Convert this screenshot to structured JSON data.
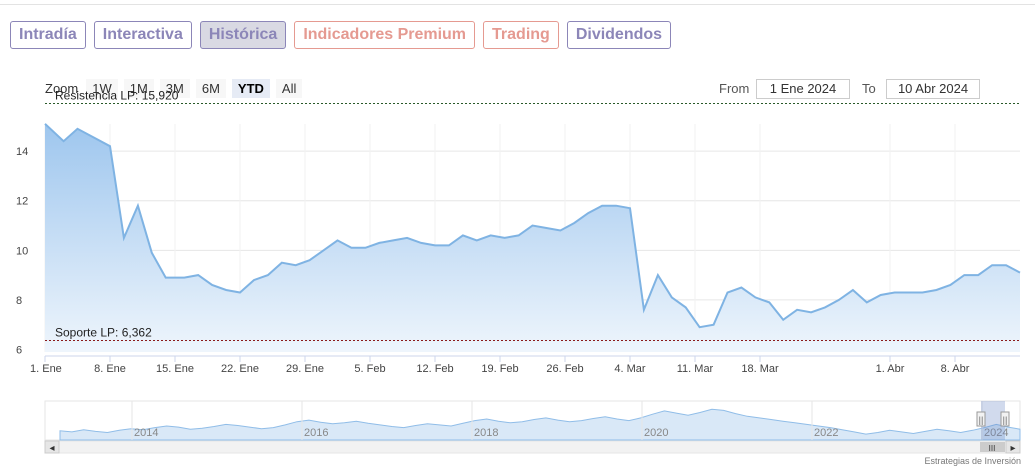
{
  "tabs": [
    {
      "label": "Intradía",
      "active": false,
      "premium": false
    },
    {
      "label": "Interactiva",
      "active": false,
      "premium": false
    },
    {
      "label": "Histórica",
      "active": true,
      "premium": false
    },
    {
      "label": "Indicadores Premium",
      "active": false,
      "premium": true
    },
    {
      "label": "Trading",
      "active": false,
      "premium": true
    },
    {
      "label": "Dividendos",
      "active": false,
      "premium": false
    }
  ],
  "zoom": {
    "label": "Zoom",
    "buttons": [
      "1W",
      "1M",
      "3M",
      "6M",
      "YTD",
      "All"
    ],
    "active": "YTD"
  },
  "range": {
    "from_label": "From",
    "from_value": "1 Ene 2024",
    "to_label": "To",
    "to_value": "10 Abr 2024"
  },
  "chart_data": {
    "type": "area",
    "title": "",
    "xlabel": "",
    "ylabel": "",
    "ylim": [
      5.9,
      15.9
    ],
    "y_ticks": [
      6,
      8,
      10,
      12,
      14
    ],
    "x_ticks": [
      {
        "day": 0,
        "label": "1. Ene"
      },
      {
        "day": 7,
        "label": "8. Ene"
      },
      {
        "day": 14,
        "label": "15. Ene"
      },
      {
        "day": 21,
        "label": "22. Ene"
      },
      {
        "day": 28,
        "label": "29. Ene"
      },
      {
        "day": 35,
        "label": "5. Feb"
      },
      {
        "day": 42,
        "label": "12. Feb"
      },
      {
        "day": 49,
        "label": "19. Feb"
      },
      {
        "day": 56,
        "label": "26. Feb"
      },
      {
        "day": 63,
        "label": "4. Mar"
      },
      {
        "day": 70,
        "label": "11. Mar"
      },
      {
        "day": 77,
        "label": "18. Mar"
      },
      {
        "day": 91,
        "label": "1. Abr"
      },
      {
        "day": 98,
        "label": "8. Abr"
      }
    ],
    "x_end_day": 101,
    "series": [
      {
        "points": [
          [
            0,
            15.1
          ],
          [
            2,
            14.4
          ],
          [
            3.5,
            14.9
          ],
          [
            7,
            14.2
          ],
          [
            8.5,
            10.5
          ],
          [
            10,
            11.8
          ],
          [
            11.5,
            9.9
          ],
          [
            13,
            8.9
          ],
          [
            15,
            8.9
          ],
          [
            16.5,
            9.0
          ],
          [
            18,
            8.6
          ],
          [
            19.5,
            8.4
          ],
          [
            21,
            8.3
          ],
          [
            22.5,
            8.8
          ],
          [
            24,
            9.0
          ],
          [
            25.5,
            9.5
          ],
          [
            27,
            9.4
          ],
          [
            28.5,
            9.6
          ],
          [
            30,
            10.0
          ],
          [
            31.5,
            10.4
          ],
          [
            33,
            10.1
          ],
          [
            34.5,
            10.1
          ],
          [
            36,
            10.3
          ],
          [
            37.5,
            10.4
          ],
          [
            39,
            10.5
          ],
          [
            40.5,
            10.3
          ],
          [
            42,
            10.2
          ],
          [
            43.5,
            10.2
          ],
          [
            45,
            10.6
          ],
          [
            46.5,
            10.4
          ],
          [
            48,
            10.6
          ],
          [
            49.5,
            10.5
          ],
          [
            51,
            10.6
          ],
          [
            52.5,
            11.0
          ],
          [
            54,
            10.9
          ],
          [
            55.5,
            10.8
          ],
          [
            57,
            11.1
          ],
          [
            58.5,
            11.5
          ],
          [
            60,
            11.8
          ],
          [
            61.5,
            11.8
          ],
          [
            63,
            11.7
          ],
          [
            64.5,
            7.6
          ],
          [
            66,
            9.0
          ],
          [
            67.5,
            8.1
          ],
          [
            69,
            7.7
          ],
          [
            70.5,
            6.9
          ],
          [
            72,
            7.0
          ],
          [
            73.5,
            8.3
          ],
          [
            75,
            8.5
          ],
          [
            76.5,
            8.1
          ],
          [
            78,
            7.9
          ],
          [
            79.5,
            7.2
          ],
          [
            81,
            7.6
          ],
          [
            82.5,
            7.5
          ],
          [
            84,
            7.7
          ],
          [
            85.5,
            8.0
          ],
          [
            87,
            8.4
          ],
          [
            88.5,
            7.9
          ],
          [
            90,
            8.2
          ],
          [
            91.5,
            8.3
          ],
          [
            93,
            8.3
          ],
          [
            94.5,
            8.3
          ],
          [
            96,
            8.4
          ],
          [
            97.5,
            8.6
          ],
          [
            99,
            9.0
          ],
          [
            100.5,
            9.0
          ],
          [
            102,
            9.4
          ],
          [
            103.5,
            9.4
          ],
          [
            105,
            9.1
          ]
        ]
      }
    ],
    "annotations": [
      {
        "label": "Resistencia LP: 15,920",
        "value": 15.92
      },
      {
        "label": "Soporte LP: 6,362",
        "value": 6.362
      }
    ],
    "colors": {
      "line": "#7fb3e3",
      "area_top": "#9ec6ee",
      "area_bottom": "#eef5fc",
      "resistance": "#2a5a2a",
      "support": "#8b1a1a",
      "grid": "#e6e6e6"
    }
  },
  "navigator": {
    "year_labels": [
      "2014",
      "2016",
      "2018",
      "2020",
      "2022",
      "2024"
    ],
    "profile": [
      7.2,
      7.0,
      7.4,
      7.1,
      6.9,
      7.3,
      7.6,
      7.4,
      7.8,
      8.1,
      7.9,
      7.5,
      7.7,
      8.0,
      8.4,
      8.2,
      7.9,
      7.6,
      7.8,
      8.3,
      8.9,
      9.2,
      8.8,
      8.5,
      8.7,
      9.0,
      8.6,
      8.3,
      8.0,
      7.8,
      8.2,
      8.5,
      8.3,
      8.1,
      8.6,
      9.1,
      9.4,
      9.0,
      8.7,
      8.9,
      9.3,
      9.6,
      9.2,
      8.9,
      9.1,
      9.5,
      9.8,
      9.4,
      9.1,
      9.6,
      10.3,
      10.9,
      10.5,
      10.1,
      10.6,
      11.2,
      11.0,
      10.4,
      9.9,
      9.6,
      9.3,
      9.0,
      8.7,
      8.4,
      8.1,
      7.8,
      7.4,
      7.0,
      6.6,
      6.9,
      7.3,
      7.0,
      6.7,
      7.1,
      7.5,
      7.2,
      6.9,
      7.3,
      7.8,
      8.4,
      7.9,
      7.5
    ],
    "scroll_left_arrow": "◂",
    "scroll_right_arrow": "▸",
    "scroll_grip": "III",
    "handle_glyph": "||"
  },
  "footer": {
    "credit": "Estrategias de Inversión"
  }
}
